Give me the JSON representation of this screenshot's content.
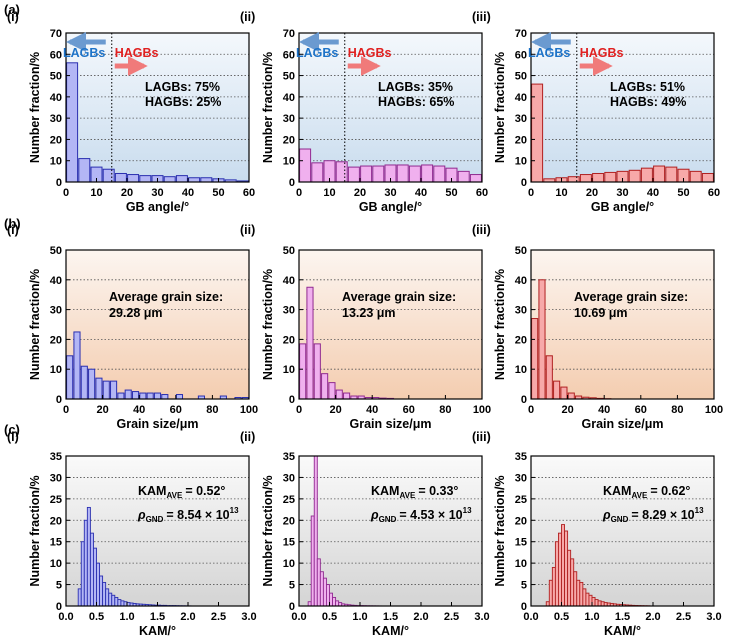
{
  "row_labels": [
    "(a)",
    "(b)",
    "(c)"
  ],
  "chart_data": [
    {
      "type": "bar",
      "row": 0,
      "col": 0,
      "panel_label": "(i)",
      "xlabel": "GB angle/°",
      "ylabel": "Number fraction/%",
      "xlim": [
        0,
        60
      ],
      "ylim": [
        0,
        70
      ],
      "xticks": [
        0,
        10,
        20,
        30,
        40,
        50,
        60
      ],
      "yticks": [
        0,
        10,
        20,
        30,
        40,
        50,
        60,
        70
      ],
      "bin_width": 4,
      "bin_starts": [
        0,
        4,
        8,
        12,
        16,
        20,
        24,
        28,
        32,
        36,
        40,
        44,
        48,
        52,
        56
      ],
      "values": [
        56,
        11,
        7,
        6,
        4,
        3.5,
        3,
        3,
        2.5,
        3,
        2,
        2,
        1.5,
        1,
        0.5
      ],
      "divider": 15,
      "arrow_left_label": "LAGBs",
      "arrow_right_label": "HAGBs",
      "annotation": [
        "LAGBs: 75%",
        "HAGBs: 25%"
      ],
      "fill": "#b3b6f5",
      "stroke": "#2a2fb0",
      "bg_top": "#f4f8fc",
      "bg_bottom": "#c9dcee"
    },
    {
      "type": "bar",
      "row": 0,
      "col": 1,
      "panel_label": "(ii)",
      "xlabel": "GB angle/°",
      "ylabel": "Number fraction/%",
      "xlim": [
        0,
        60
      ],
      "ylim": [
        0,
        70
      ],
      "xticks": [
        0,
        10,
        20,
        30,
        40,
        50,
        60
      ],
      "yticks": [
        0,
        10,
        20,
        30,
        40,
        50,
        60,
        70
      ],
      "bin_width": 4,
      "bin_starts": [
        0,
        4,
        8,
        12,
        16,
        20,
        24,
        28,
        32,
        36,
        40,
        44,
        48,
        52,
        56
      ],
      "values": [
        15.5,
        9,
        10,
        9.5,
        7,
        7.5,
        7.5,
        8,
        8,
        7.5,
        8,
        7.5,
        6.5,
        5,
        3.5
      ],
      "divider": 15,
      "arrow_left_label": "LAGBs",
      "arrow_right_label": "HAGBs",
      "annotation": [
        "LAGBs: 35%",
        "HAGBs: 65%"
      ],
      "fill": "#f0b0ee",
      "stroke": "#902a90",
      "bg_top": "#f4f8fc",
      "bg_bottom": "#c9dcee"
    },
    {
      "type": "bar",
      "row": 0,
      "col": 2,
      "panel_label": "(iii)",
      "xlabel": "GB angle/°",
      "ylabel": "Number fraction/%",
      "xlim": [
        0,
        60
      ],
      "ylim": [
        0,
        70
      ],
      "xticks": [
        0,
        10,
        20,
        30,
        40,
        50,
        60
      ],
      "yticks": [
        0,
        10,
        20,
        30,
        40,
        50,
        60,
        70
      ],
      "bin_width": 4,
      "bin_starts": [
        0,
        4,
        8,
        12,
        16,
        20,
        24,
        28,
        32,
        36,
        40,
        44,
        48,
        52,
        56
      ],
      "values": [
        46,
        1.5,
        2,
        2.5,
        3.5,
        4,
        4.5,
        5,
        5.5,
        6.5,
        7.5,
        7,
        6,
        5,
        4
      ],
      "divider": 15,
      "arrow_left_label": "LAGBs",
      "arrow_right_label": "HAGBs",
      "annotation": [
        "LAGBs: 51%",
        "HAGBs: 49%"
      ],
      "fill": "#f7a9a9",
      "stroke": "#b02020",
      "bg_top": "#f4f8fc",
      "bg_bottom": "#c9dcee"
    },
    {
      "type": "bar",
      "row": 1,
      "col": 0,
      "panel_label": "(i)",
      "xlabel": "Grain size/μm",
      "ylabel": "Number fraction/%",
      "xlim": [
        0,
        100
      ],
      "ylim": [
        0,
        50
      ],
      "xticks": [
        0,
        20,
        40,
        60,
        80,
        100
      ],
      "yticks": [
        0,
        10,
        20,
        30,
        40,
        50
      ],
      "bin_width": 4,
      "bin_starts": [
        0,
        4,
        8,
        12,
        16,
        20,
        24,
        28,
        32,
        36,
        40,
        44,
        48,
        52,
        56,
        60,
        64,
        68,
        72,
        76,
        80,
        84,
        88,
        92,
        96
      ],
      "values": [
        14.5,
        22.5,
        11,
        10,
        7,
        6,
        6,
        2,
        3,
        2.5,
        2,
        2,
        2,
        1.5,
        0,
        1.5,
        0,
        0,
        1,
        0,
        0,
        1,
        0,
        0.5,
        0.5
      ],
      "annotation": [
        "Average grain size:",
        "29.28 μm"
      ],
      "fill": "#b3b6f5",
      "stroke": "#2a2fb0",
      "bg_top": "#fcf5f0",
      "bg_bottom": "#f4cdb0"
    },
    {
      "type": "bar",
      "row": 1,
      "col": 1,
      "panel_label": "(ii)",
      "xlabel": "Grain size/μm",
      "ylabel": "Number fraction/%",
      "xlim": [
        0,
        100
      ],
      "ylim": [
        0,
        50
      ],
      "xticks": [
        0,
        20,
        40,
        60,
        80,
        100
      ],
      "yticks": [
        0,
        10,
        20,
        30,
        40,
        50
      ],
      "bin_width": 4,
      "bin_starts": [
        0,
        4,
        8,
        12,
        16,
        20,
        24,
        28,
        32,
        36,
        40,
        44,
        48
      ],
      "values": [
        18.5,
        37.5,
        18.5,
        8.5,
        5.5,
        3,
        2,
        1,
        1,
        0.5,
        0.5,
        0.3,
        0.2
      ],
      "annotation": [
        "Average grain size:",
        "13.23 μm"
      ],
      "fill": "#f0b0ee",
      "stroke": "#902a90",
      "bg_top": "#fcf5f0",
      "bg_bottom": "#f4cdb0"
    },
    {
      "type": "bar",
      "row": 1,
      "col": 2,
      "panel_label": "(iii)",
      "xlabel": "Grain size/μm",
      "ylabel": "Number fraction/%",
      "xlim": [
        0,
        100
      ],
      "ylim": [
        0,
        50
      ],
      "xticks": [
        0,
        20,
        40,
        60,
        80,
        100
      ],
      "yticks": [
        0,
        10,
        20,
        30,
        40,
        50
      ],
      "bin_width": 4,
      "bin_starts": [
        0,
        4,
        8,
        12,
        16,
        20,
        24,
        28,
        32,
        36,
        40
      ],
      "values": [
        27,
        40,
        14.5,
        6,
        4,
        2,
        1,
        0.6,
        0.4,
        0.2,
        0.1
      ],
      "annotation": [
        "Average grain size:",
        "10.69 μm"
      ],
      "fill": "#f7a9a9",
      "stroke": "#b02020",
      "bg_top": "#fcf5f0",
      "bg_bottom": "#f4cdb0"
    },
    {
      "type": "bar",
      "row": 2,
      "col": 0,
      "panel_label": "(i)",
      "xlabel": "KAM/°",
      "ylabel": "Number fraction/%",
      "xlim": [
        0,
        3
      ],
      "ylim": [
        0,
        35
      ],
      "xticks": [
        0.0,
        0.5,
        1.0,
        1.5,
        2.0,
        2.5,
        3.0
      ],
      "xtick_labels": [
        "0.0",
        "0.5",
        "1.0",
        "1.5",
        "2.0",
        "2.5",
        "3.0"
      ],
      "yticks": [
        0,
        5,
        10,
        15,
        20,
        25,
        30,
        35
      ],
      "bin_width": 0.05,
      "bin_starts": [
        0.2,
        0.25,
        0.3,
        0.35,
        0.4,
        0.45,
        0.5,
        0.55,
        0.6,
        0.65,
        0.7,
        0.75,
        0.8,
        0.85,
        0.9,
        0.95,
        1.0,
        1.05,
        1.1,
        1.15,
        1.2,
        1.25,
        1.3,
        1.35,
        1.4,
        1.45,
        1.5,
        1.55,
        1.6,
        1.65,
        1.7,
        1.75,
        1.8,
        1.85,
        1.9,
        1.95,
        2.0
      ],
      "values": [
        4,
        15,
        20,
        23,
        17,
        13.5,
        10,
        7,
        5.5,
        4,
        3,
        2.5,
        2,
        1.5,
        1.2,
        1,
        0.8,
        0.7,
        0.6,
        0.5,
        0.45,
        0.4,
        0.35,
        0.3,
        0.25,
        0.2,
        0.2,
        0.15,
        0.15,
        0.1,
        0.1,
        0.1,
        0.08,
        0.06,
        0.05,
        0.04,
        0.03
      ],
      "kam_value": "= 0.52°",
      "rho_value": "= 8.54 × 10",
      "annotation_prefix_kam": "KAM",
      "annotation_sub_kam": "AVE",
      "annotation_prefix_rho": "ρ",
      "annotation_sub_rho": "GND",
      "annotation_exp": "13",
      "fill": "#b3b6f5",
      "stroke": "#2a2fb0",
      "bg_top": "#fafafa",
      "bg_bottom": "#d4d4d4"
    },
    {
      "type": "bar",
      "row": 2,
      "col": 1,
      "panel_label": "(ii)",
      "xlabel": "KAM/°",
      "ylabel": "Number fraction/%",
      "xlim": [
        0,
        3
      ],
      "ylim": [
        0,
        35
      ],
      "xticks": [
        0.0,
        0.5,
        1.0,
        1.5,
        2.0,
        2.5,
        3.0
      ],
      "xtick_labels": [
        "0.0",
        "0.5",
        "1.0",
        "1.5",
        "2.0",
        "2.5",
        "3.0"
      ],
      "yticks": [
        0,
        5,
        10,
        15,
        20,
        25,
        30,
        35
      ],
      "bin_width": 0.05,
      "bin_starts": [
        0.15,
        0.2,
        0.25,
        0.3,
        0.35,
        0.4,
        0.45,
        0.5,
        0.55,
        0.6,
        0.65,
        0.7,
        0.75,
        0.8,
        0.85,
        0.9,
        0.95,
        1.0,
        1.05,
        1.1,
        1.15,
        1.2,
        1.25,
        1.3
      ],
      "values": [
        1,
        21,
        35,
        11,
        8,
        6.5,
        5,
        3,
        2,
        1.2,
        0.8,
        0.5,
        0.4,
        0.3,
        0.2,
        0.15,
        0.1,
        0.1,
        0.08,
        0.06,
        0.05,
        0.04,
        0.03,
        0.02
      ],
      "kam_value": "= 0.33°",
      "rho_value": "= 4.53 × 10",
      "annotation_prefix_kam": "KAM",
      "annotation_sub_kam": "AVE",
      "annotation_prefix_rho": "ρ",
      "annotation_sub_rho": "GND",
      "annotation_exp": "13",
      "fill": "#f0b0ee",
      "stroke": "#902a90",
      "bg_top": "#fafafa",
      "bg_bottom": "#d4d4d4"
    },
    {
      "type": "bar",
      "row": 2,
      "col": 2,
      "panel_label": "(iii)",
      "xlabel": "KAM/°",
      "ylabel": "Number fraction/%",
      "xlim": [
        0,
        3
      ],
      "ylim": [
        0,
        35
      ],
      "xticks": [
        0.0,
        0.5,
        1.0,
        1.5,
        2.0,
        2.5,
        3.0
      ],
      "xtick_labels": [
        "0.0",
        "0.5",
        "1.0",
        "1.5",
        "2.0",
        "2.5",
        "3.0"
      ],
      "yticks": [
        0,
        5,
        10,
        15,
        20,
        25,
        30,
        35
      ],
      "bin_width": 0.05,
      "bin_starts": [
        0.25,
        0.3,
        0.35,
        0.4,
        0.45,
        0.5,
        0.55,
        0.6,
        0.65,
        0.7,
        0.75,
        0.8,
        0.85,
        0.9,
        0.95,
        1.0,
        1.05,
        1.1,
        1.15,
        1.2,
        1.25,
        1.3,
        1.35,
        1.4,
        1.45,
        1.5,
        1.55,
        1.6,
        1.65,
        1.7,
        1.75,
        1.8,
        1.85,
        1.9
      ],
      "values": [
        1,
        6,
        9,
        15,
        17,
        19,
        17.5,
        13,
        11,
        8,
        6,
        5.5,
        4,
        3,
        2.5,
        2,
        1.5,
        1.2,
        1,
        0.8,
        0.7,
        0.6,
        0.5,
        0.4,
        0.35,
        0.3,
        0.25,
        0.2,
        0.15,
        0.12,
        0.1,
        0.08,
        0.06,
        0.05
      ],
      "kam_value": "= 0.62°",
      "rho_value": "= 8.29 × 10",
      "annotation_prefix_kam": "KAM",
      "annotation_sub_kam": "AVE",
      "annotation_prefix_rho": "ρ",
      "annotation_sub_rho": "GND",
      "annotation_exp": "13",
      "fill": "#f7a9a9",
      "stroke": "#b02020",
      "bg_top": "#fafafa",
      "bg_bottom": "#d4d4d4"
    }
  ]
}
